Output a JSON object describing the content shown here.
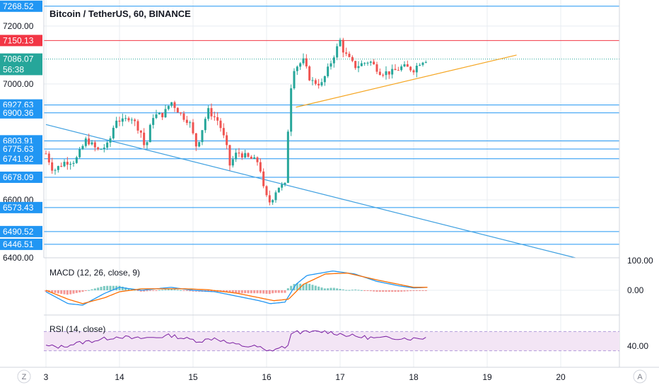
{
  "header": {
    "title": "Bitcoin / TetherUS, 60, BINANCE"
  },
  "colors": {
    "up": "#26a69a",
    "down": "#ef5350",
    "hline": "#2196f3",
    "red_line": "#f23645",
    "trend_orange": "#f5a623",
    "trend_blue": "#3fa0e0",
    "macd_line": "#2196f3",
    "signal_line": "#ff6d00",
    "rsi_line": "#7b1fa2",
    "rsi_band": "#f3e5f5",
    "grid": "#e8ecf2"
  },
  "price_axis": {
    "tick_labels": [
      "7200.00",
      "7000.00",
      "6600.00",
      "6400.00"
    ]
  },
  "price_tags": [
    {
      "label": "7268.52",
      "value": 7268.52,
      "color": "#2196f3"
    },
    {
      "label": "7150.13",
      "value": 7150.13,
      "color": "#f23645"
    },
    {
      "label": "7086.07",
      "value": 7086.07,
      "color": "#26a69a"
    },
    {
      "label": "56:38",
      "value": 7050,
      "color": "#26a69a"
    },
    {
      "label": "6927.63",
      "value": 6927.63,
      "color": "#2196f3"
    },
    {
      "label": "6900.36",
      "value": 6900.36,
      "color": "#2196f3"
    },
    {
      "label": "6803.91",
      "value": 6803.91,
      "color": "#2196f3"
    },
    {
      "label": "6775.63",
      "value": 6775.63,
      "color": "#2196f3"
    },
    {
      "label": "6741.92",
      "value": 6741.92,
      "color": "#2196f3"
    },
    {
      "label": "6678.09",
      "value": 6678.09,
      "color": "#2196f3"
    },
    {
      "label": "6573.43",
      "value": 6573.43,
      "color": "#2196f3"
    },
    {
      "label": "6490.52",
      "value": 6490.52,
      "color": "#2196f3"
    },
    {
      "label": "6446.51",
      "value": 6446.51,
      "color": "#2196f3"
    }
  ],
  "macd": {
    "label": "MACD (12, 26, close, 9)",
    "tick_labels": [
      "100.00",
      "0.00"
    ]
  },
  "rsi": {
    "label": "RSI (14, close)",
    "tick_labels": [
      "40.00"
    ],
    "band": [
      30,
      70
    ]
  },
  "time_axis": {
    "labels": [
      "3",
      "14",
      "15",
      "16",
      "17",
      "18",
      "19",
      "20"
    ],
    "left_button": "Z",
    "right_button": "A"
  },
  "chart_data": {
    "type": "candlestick",
    "title": "Bitcoin / TetherUS, 60, BINANCE",
    "interval": "60",
    "exchange": "BINANCE",
    "ylim": [
      6400,
      7290
    ],
    "x_range_days": [
      13,
      20.8
    ],
    "horizontal_levels": [
      7268.52,
      7150.13,
      6927.63,
      6900.36,
      6803.91,
      6775.63,
      6741.92,
      6678.09,
      6573.43,
      6490.52,
      6446.51
    ],
    "last_price": 7086.07,
    "countdown": "56:38",
    "trendlines": [
      {
        "color": "orange",
        "from": {
          "day": 16.4,
          "price": 6920
        },
        "to": {
          "day": 19.4,
          "price": 7100
        }
      },
      {
        "color": "blue",
        "from": {
          "day": 13.0,
          "price": 6860
        },
        "to": {
          "day": 20.2,
          "price": 6400
        }
      }
    ],
    "candles_path": [
      [
        13.0,
        6760
      ],
      [
        13.1,
        6700
      ],
      [
        13.25,
        6730
      ],
      [
        13.4,
        6735
      ],
      [
        13.55,
        6810
      ],
      [
        13.7,
        6770
      ],
      [
        13.85,
        6790
      ],
      [
        13.95,
        6880
      ],
      [
        14.05,
        6870
      ],
      [
        14.15,
        6890
      ],
      [
        14.3,
        6830
      ],
      [
        14.35,
        6770
      ],
      [
        14.45,
        6890
      ],
      [
        14.6,
        6895
      ],
      [
        14.7,
        6940
      ],
      [
        14.85,
        6890
      ],
      [
        14.95,
        6870
      ],
      [
        15.05,
        6780
      ],
      [
        15.2,
        6910
      ],
      [
        15.35,
        6870
      ],
      [
        15.45,
        6790
      ],
      [
        15.5,
        6720
      ],
      [
        15.6,
        6765
      ],
      [
        15.75,
        6745
      ],
      [
        15.9,
        6730
      ],
      [
        15.97,
        6620
      ],
      [
        16.05,
        6590
      ],
      [
        16.15,
        6645
      ],
      [
        16.25,
        6650
      ],
      [
        16.3,
        6880
      ],
      [
        16.35,
        7050
      ],
      [
        16.5,
        7080
      ],
      [
        16.6,
        7010
      ],
      [
        16.75,
        7000
      ],
      [
        16.9,
        7090
      ],
      [
        17.0,
        7150
      ],
      [
        17.05,
        7110
      ],
      [
        17.2,
        7060
      ],
      [
        17.4,
        7080
      ],
      [
        17.55,
        7040
      ],
      [
        17.7,
        7040
      ],
      [
        17.85,
        7060
      ],
      [
        18.0,
        7050
      ],
      [
        18.1,
        7080
      ],
      [
        18.2,
        7086
      ]
    ],
    "macd_path": [
      [
        13.0,
        -5
      ],
      [
        13.3,
        -45
      ],
      [
        13.5,
        -50
      ],
      [
        13.8,
        -10
      ],
      [
        14.0,
        10
      ],
      [
        14.3,
        0
      ],
      [
        14.5,
        5
      ],
      [
        14.7,
        10
      ],
      [
        15.0,
        0
      ],
      [
        15.3,
        -5
      ],
      [
        15.6,
        -20
      ],
      [
        15.9,
        -35
      ],
      [
        16.05,
        -45
      ],
      [
        16.25,
        -40
      ],
      [
        16.4,
        20
      ],
      [
        16.55,
        50
      ],
      [
        16.9,
        65
      ],
      [
        17.2,
        55
      ],
      [
        17.5,
        30
      ],
      [
        17.8,
        15
      ],
      [
        18.0,
        8
      ],
      [
        18.2,
        10
      ]
    ],
    "signal_path": [
      [
        13.0,
        0
      ],
      [
        13.3,
        -30
      ],
      [
        13.5,
        -45
      ],
      [
        13.8,
        -25
      ],
      [
        14.0,
        -5
      ],
      [
        14.3,
        5
      ],
      [
        14.6,
        5
      ],
      [
        14.9,
        5
      ],
      [
        15.2,
        2
      ],
      [
        15.6,
        -10
      ],
      [
        15.9,
        -25
      ],
      [
        16.1,
        -35
      ],
      [
        16.3,
        -30
      ],
      [
        16.5,
        20
      ],
      [
        16.8,
        55
      ],
      [
        17.1,
        58
      ],
      [
        17.5,
        35
      ],
      [
        17.8,
        20
      ],
      [
        18.0,
        10
      ],
      [
        18.2,
        10
      ]
    ],
    "rsi_path": [
      [
        13.0,
        40
      ],
      [
        13.2,
        38
      ],
      [
        13.4,
        45
      ],
      [
        13.6,
        50
      ],
      [
        13.8,
        55
      ],
      [
        14.0,
        60
      ],
      [
        14.2,
        55
      ],
      [
        14.5,
        58
      ],
      [
        14.7,
        62
      ],
      [
        14.9,
        55
      ],
      [
        15.1,
        50
      ],
      [
        15.3,
        57
      ],
      [
        15.5,
        45
      ],
      [
        15.7,
        40
      ],
      [
        15.9,
        38
      ],
      [
        16.0,
        28
      ],
      [
        16.15,
        35
      ],
      [
        16.3,
        40
      ],
      [
        16.35,
        72
      ],
      [
        16.5,
        68
      ],
      [
        16.8,
        70
      ],
      [
        17.0,
        65
      ],
      [
        17.2,
        60
      ],
      [
        17.5,
        56
      ],
      [
        17.8,
        57
      ],
      [
        18.0,
        55
      ],
      [
        18.2,
        58
      ]
    ]
  }
}
